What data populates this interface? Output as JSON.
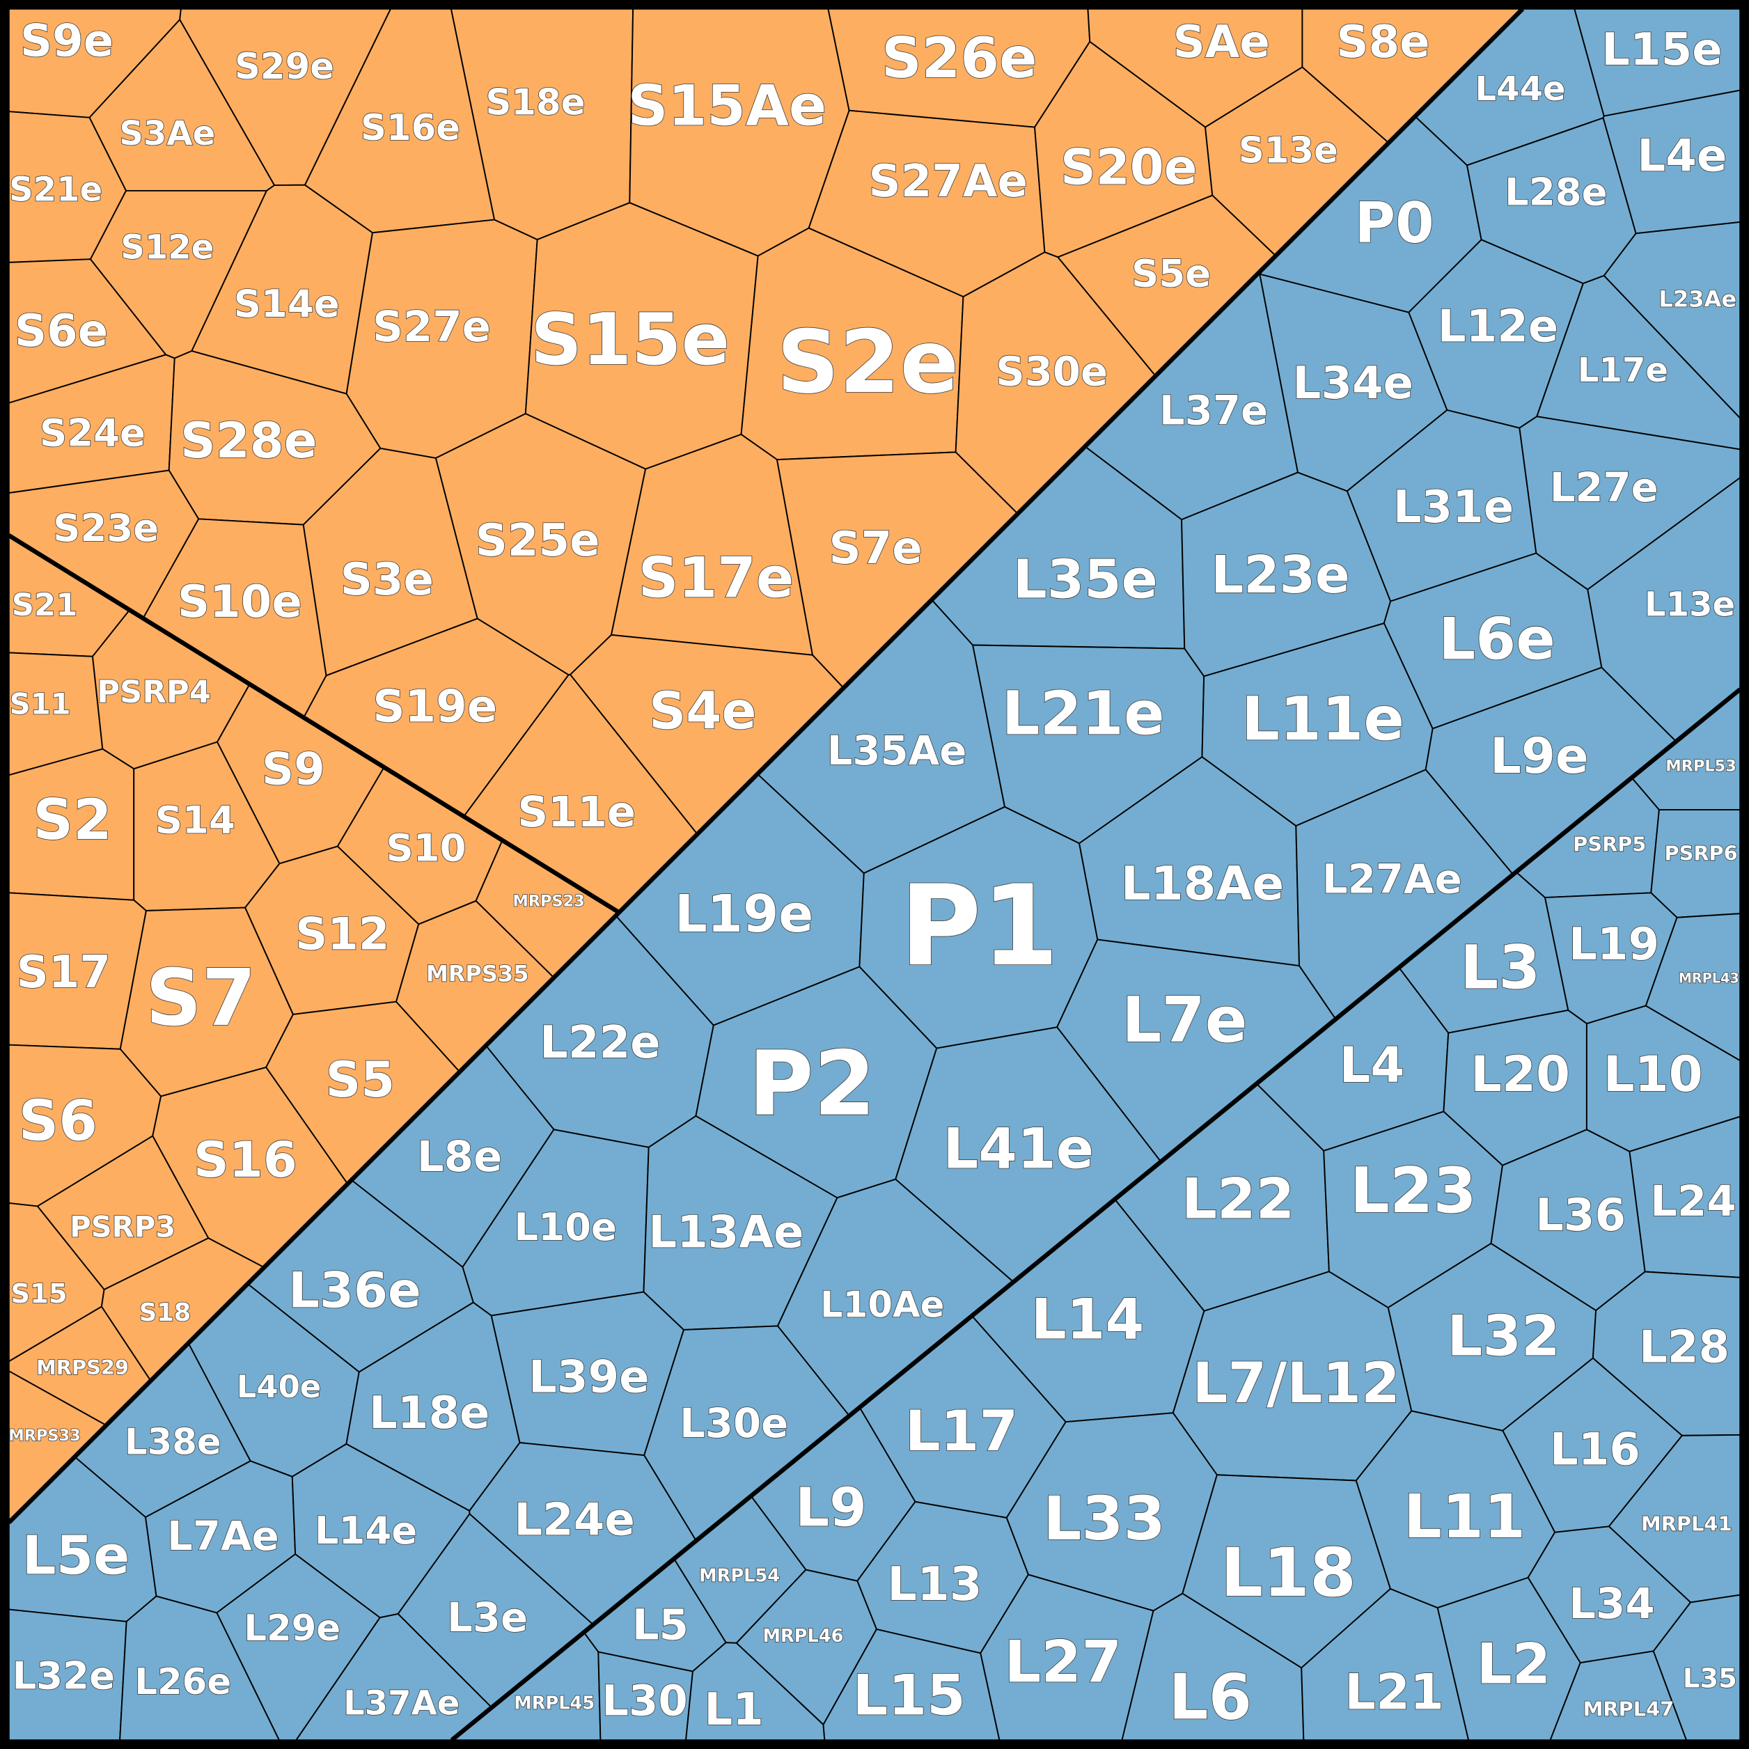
{
  "orange_upper": [
    "S9e",
    "S29e",
    "S18e",
    "S15Ae",
    "S26e",
    "SAe",
    "S8e",
    "S3Ae",
    "S16e",
    "S27Ae",
    "S20e",
    "S13e",
    "S21e",
    "S12e",
    "S14e",
    "S27e",
    "S15e",
    "S2e",
    "S30e",
    "S5e",
    "S6e",
    "S24e",
    "S28e",
    "S23e",
    "S10e",
    "S3e",
    "S25e",
    "S17e",
    "S7e",
    "S19e",
    "S4e",
    "S11e"
  ],
  "orange_lower": [
    "S21",
    "S11",
    "PSRP4",
    "S2",
    "S14",
    "S9",
    "S10",
    "MRPS23",
    "S17",
    "S7",
    "S12",
    "MRPS35",
    "S6",
    "S5",
    "S16",
    "PSRP3",
    "S15",
    "S18",
    "MRPS29",
    "MRPS33"
  ],
  "blue_upper": [
    "L15e",
    "L44e",
    "L4e",
    "P0",
    "L28e",
    "L23Ae",
    "L12e",
    "L34e",
    "L37e",
    "L17e",
    "L27e",
    "L31e",
    "L35e",
    "L23e",
    "L13e",
    "L6e",
    "L21e",
    "L11e",
    "L35Ae",
    "L9e",
    "L19e",
    "P1",
    "L18Ae",
    "L27Ae",
    "L22e",
    "P2",
    "L7e",
    "L8e",
    "L41e",
    "L10e",
    "L13Ae",
    "L36e",
    "L10Ae",
    "L40e",
    "L18e",
    "L39e",
    "L30e",
    "L38e",
    "L5e",
    "L7Ae",
    "L14e",
    "L24e",
    "L29e",
    "L3e",
    "L32e",
    "L26e",
    "L37Ae"
  ],
  "blue_lower": [
    "MRPL53",
    "PSRP5",
    "PSRP6",
    "L3",
    "L19",
    "MRPL43",
    "L4",
    "L20",
    "L10",
    "L22",
    "L23",
    "L36",
    "L24",
    "L14",
    "L32",
    "L28",
    "L7/L12",
    "L17",
    "L16",
    "L9",
    "L33",
    "L11",
    "MRPL41",
    "MRPL54",
    "L13",
    "L18",
    "L5",
    "MRPL46",
    "L27",
    "L34",
    "L2",
    "MRPL45",
    "L30",
    "L1",
    "L15",
    "L6",
    "L21",
    "MRPL47",
    "L35"
  ]
}
